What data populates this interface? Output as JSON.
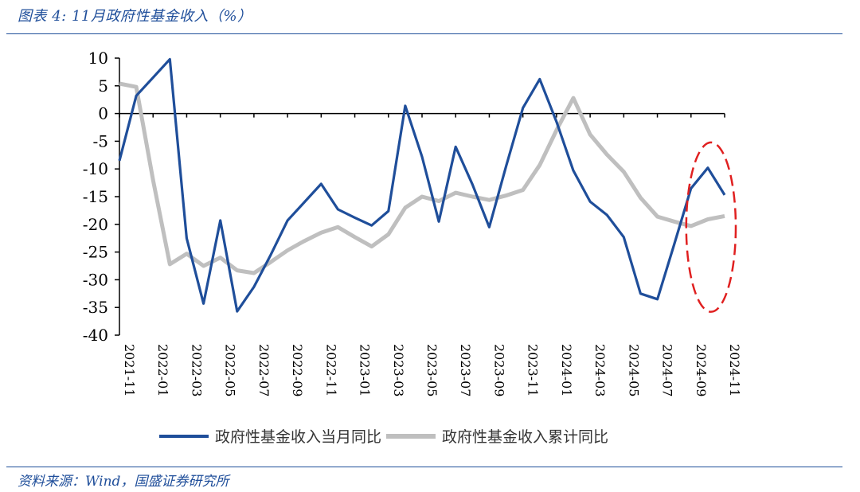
{
  "title": "图表 4:  11月政府性基金收入（%）",
  "source": "资料来源：Wind，国盛证券研究所",
  "colors": {
    "monthly": "#1f4e9a",
    "cumulative": "#bfbfbf",
    "highlight": "#e02020",
    "accent": "#1f4e9a"
  },
  "chart_data": {
    "type": "line",
    "title": "11月政府性基金收入（%）",
    "xlabel": "",
    "ylabel": "",
    "ylim": [
      -40,
      10
    ],
    "yticks": [
      10,
      5,
      0,
      -5,
      -10,
      -15,
      -20,
      -25,
      -30,
      -35,
      -40
    ],
    "x": [
      "2021-11",
      "2021-12",
      "2022-01",
      "2022-02",
      "2022-03",
      "2022-04",
      "2022-05",
      "2022-06",
      "2022-07",
      "2022-08",
      "2022-09",
      "2022-10",
      "2022-11",
      "2022-12",
      "2023-01",
      "2023-02",
      "2023-03",
      "2023-04",
      "2023-05",
      "2023-06",
      "2023-07",
      "2023-08",
      "2023-09",
      "2023-10",
      "2023-11",
      "2023-12",
      "2024-01",
      "2024-02",
      "2024-03",
      "2024-04",
      "2024-05",
      "2024-06",
      "2024-07",
      "2024-08",
      "2024-09",
      "2024-10",
      "2024-11"
    ],
    "xtick_labels": [
      "2021-11",
      "2022-01",
      "2022-03",
      "2022-05",
      "2022-07",
      "2022-09",
      "2022-11",
      "2023-01",
      "2023-03",
      "2023-05",
      "2023-07",
      "2023-09",
      "2023-11",
      "2024-01",
      "2024-03",
      "2024-05",
      "2024-07",
      "2024-09",
      "2024-11"
    ],
    "series": [
      {
        "name": "政府性基金收入当月同比",
        "values": [
          -8.5,
          3.2,
          6.5,
          9.8,
          -22.5,
          -34.3,
          -19.3,
          -35.7,
          -31.3,
          -25.5,
          -19.3,
          -16.0,
          -12.7,
          -17.3,
          -18.8,
          -20.2,
          -17.6,
          1.4,
          -7.8,
          -19.5,
          -6.0,
          -12.8,
          -20.5,
          -9.5,
          1.0,
          6.2,
          -1.5,
          -10.3,
          -15.9,
          -18.3,
          -22.3,
          -32.5,
          -33.5,
          -23.6,
          -13.5,
          -9.8,
          -14.7
        ]
      },
      {
        "name": "政府性基金收入累计同比",
        "values": [
          5.4,
          4.8,
          -12.0,
          -27.2,
          -25.3,
          -27.5,
          -26.0,
          -28.3,
          -28.8,
          -26.8,
          -24.7,
          -23.0,
          -21.5,
          -20.5,
          -22.3,
          -24.0,
          -21.8,
          -17.0,
          -15.0,
          -15.8,
          -14.3,
          -15.0,
          -15.6,
          -14.8,
          -13.8,
          -9.3,
          -3.0,
          2.8,
          -3.8,
          -7.4,
          -10.5,
          -15.2,
          -18.6,
          -19.5,
          -20.3,
          -19.1,
          -18.5
        ]
      }
    ],
    "annotations": [
      {
        "type": "ellipse",
        "color": "red",
        "dashed": true,
        "x_range": [
          "2024-09",
          "2024-11"
        ]
      }
    ]
  }
}
